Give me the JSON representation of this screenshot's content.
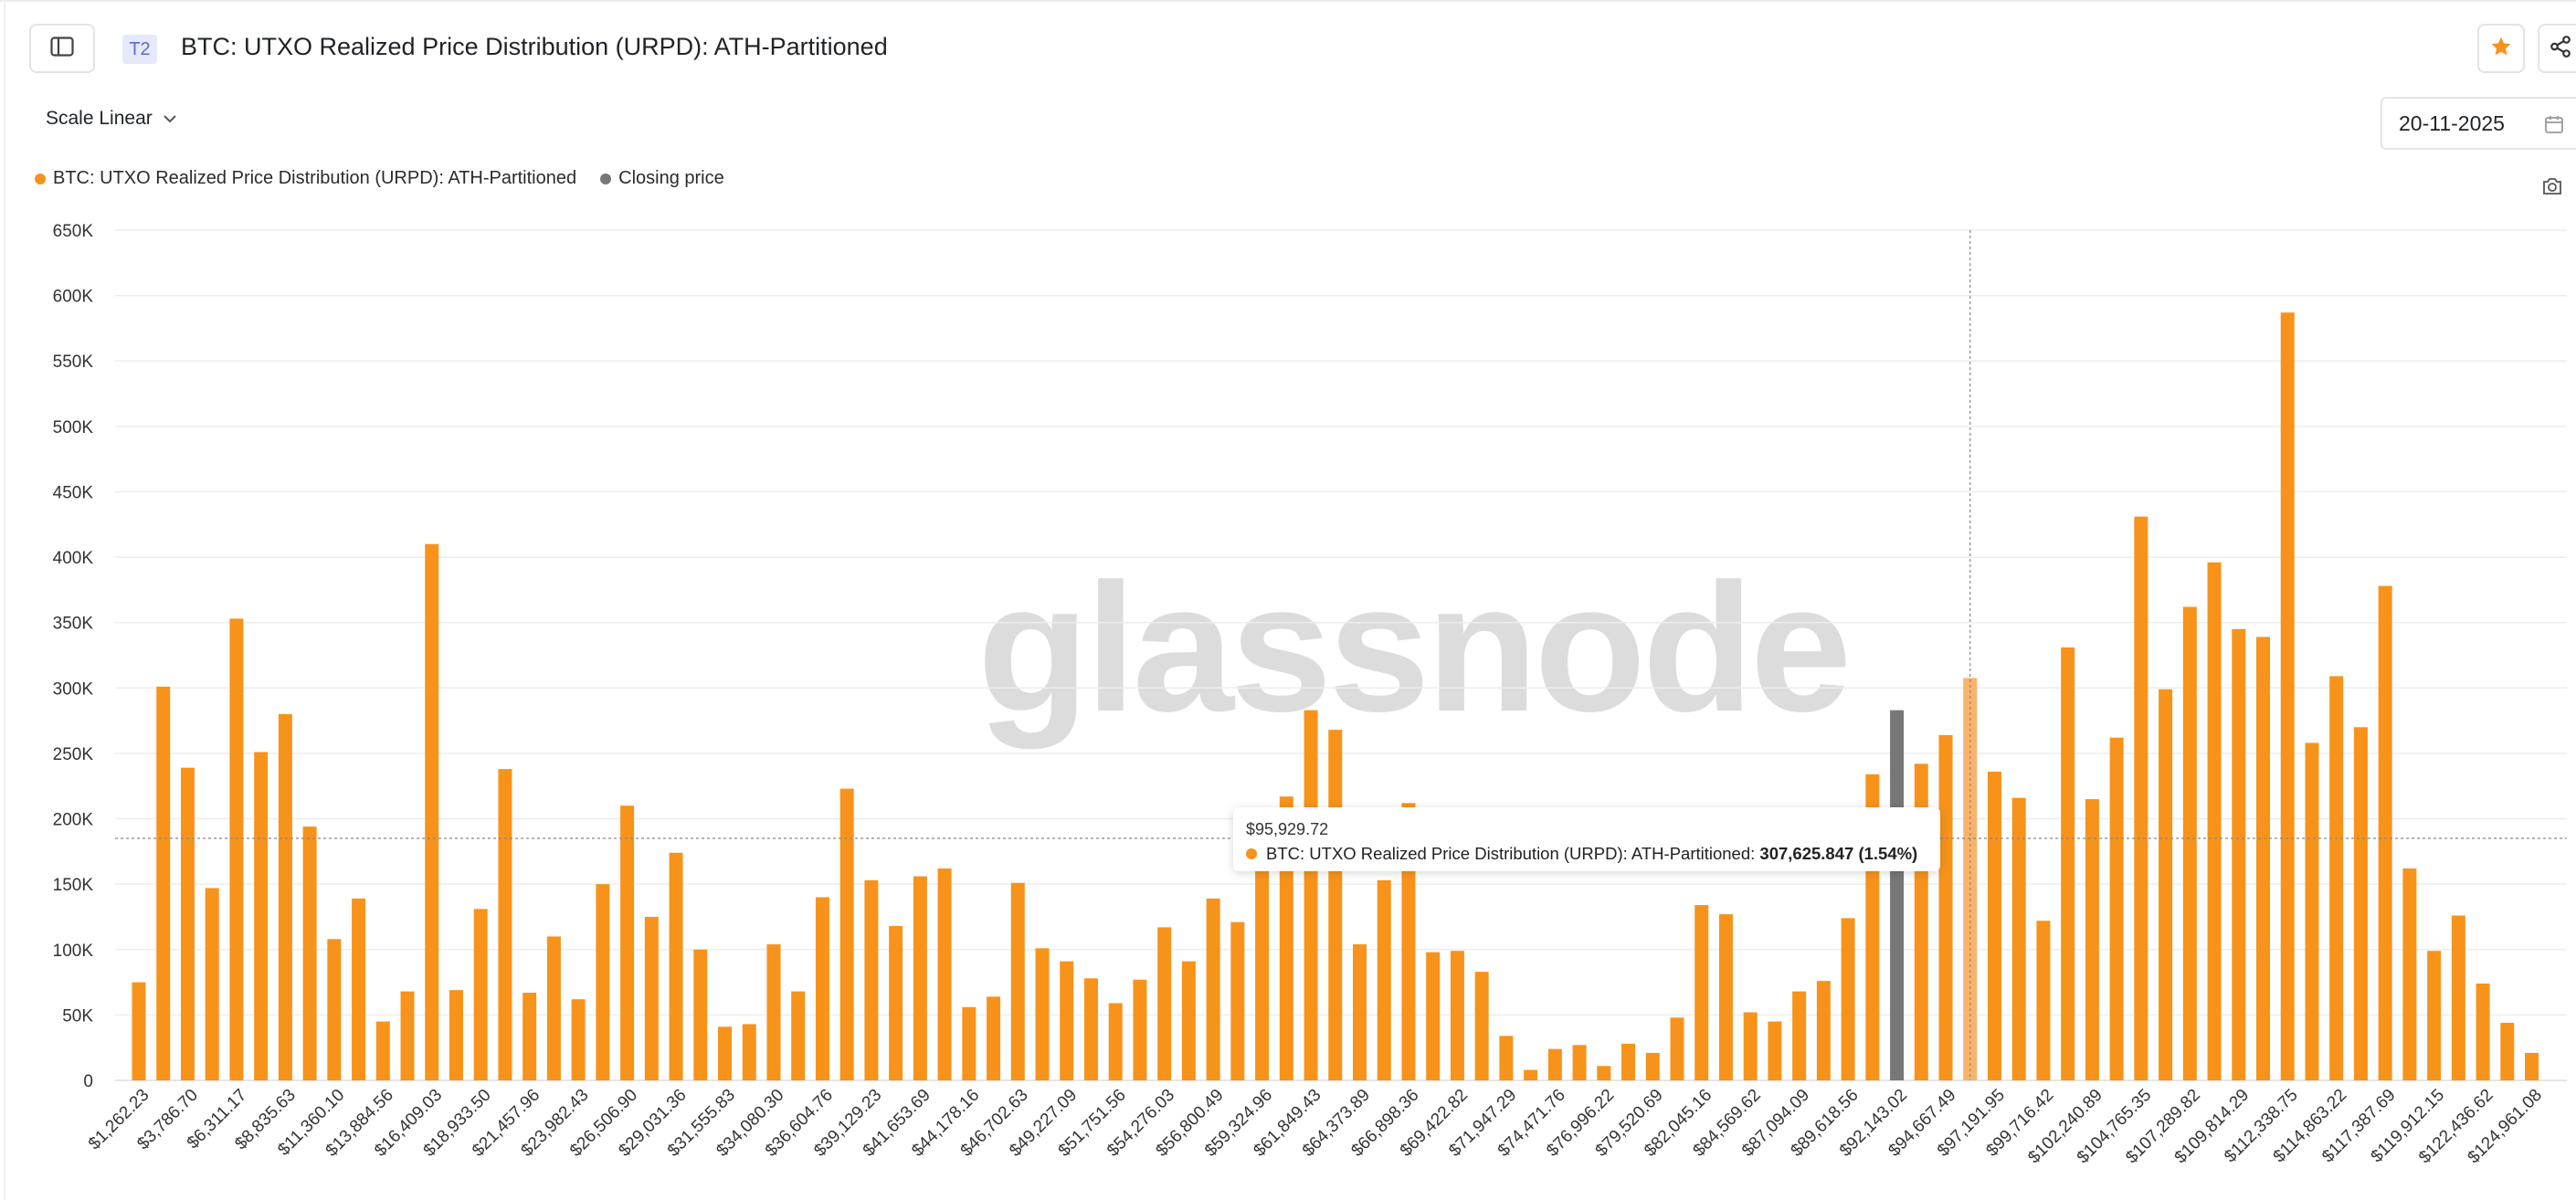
{
  "header": {
    "title": "BTC: UTXO Realized Price Distribution (URPD): ATH-Partitioned",
    "tier_badge": "T2",
    "sidebar_icon": "sidebar-toggle-icon",
    "star_icon": "star-icon",
    "share_icon": "share-icon"
  },
  "controls": {
    "scale_label": "Scale Linear",
    "date_value": "20-11-2025"
  },
  "legend": {
    "items": [
      {
        "label": "BTC: UTXO Realized Price Distribution (URPD): ATH-Partitioned",
        "color": "#f7931a"
      },
      {
        "label": "Closing price",
        "color": "#777777"
      }
    ]
  },
  "watermark": "glassnode",
  "tooltip": {
    "x_label": "$95,929.72",
    "series_label": "BTC: UTXO Realized Price Distribution (URPD): ATH-Partitioned:",
    "value": "307,625.847 (1.54%)"
  },
  "chart_data": {
    "type": "bar",
    "y_ticks": [
      "0",
      "50K",
      "100K",
      "150K",
      "200K",
      "250K",
      "300K",
      "350K",
      "400K",
      "450K",
      "500K",
      "550K",
      "600K",
      "650K"
    ],
    "ylim": [
      0,
      650000
    ],
    "x_tick_labels": [
      "$1,262.23",
      "$3,786.70",
      "$6,311.17",
      "$8,835.63",
      "$11,360.10",
      "$13,884.56",
      "$16,409.03",
      "$18,933.50",
      "$21,457.96",
      "$23,982.43",
      "$26,506.90",
      "$29,031.36",
      "$31,555.83",
      "$34,080.30",
      "$36,604.76",
      "$39,129.23",
      "$41,653.69",
      "$44,178.16",
      "$46,702.63",
      "$49,227.09",
      "$51,751.56",
      "$54,276.03",
      "$56,800.49",
      "$59,324.96",
      "$61,849.43",
      "$64,373.89",
      "$66,898.36",
      "$69,422.82",
      "$71,947.29",
      "$74,471.76",
      "$76,996.22",
      "$79,520.69",
      "$82,045.16",
      "$84,569.62",
      "$87,094.09",
      "$89,618.56",
      "$92,143.02",
      "$94,667.49",
      "$97,191.95",
      "$99,716.42",
      "$102,240.89",
      "$104,765.35",
      "$107,289.82",
      "$109,814.29",
      "$112,338.75",
      "$114,863.22",
      "$117,387.69",
      "$119,912.15",
      "$122,436.62",
      "$124,961.08"
    ],
    "values": [
      75000,
      301000,
      239000,
      147000,
      353000,
      251000,
      280000,
      194000,
      108000,
      139000,
      45000,
      68000,
      410000,
      69000,
      131000,
      238000,
      67000,
      110000,
      62000,
      150000,
      210000,
      125000,
      174000,
      100000,
      41000,
      43000,
      104000,
      68000,
      140000,
      223000,
      153000,
      118000,
      156000,
      162000,
      56000,
      64000,
      151000,
      101000,
      91000,
      78000,
      59000,
      77000,
      117000,
      91000,
      139000,
      121000,
      165000,
      217000,
      283000,
      268000,
      104000,
      153000,
      212000,
      98000,
      99000,
      83000,
      34000,
      8000,
      24000,
      27000,
      11000,
      28000,
      21000,
      48000,
      134000,
      127000,
      52000,
      45000,
      68000,
      76000,
      124000,
      234000,
      283000,
      242000,
      264000,
      307625.847,
      236000,
      216000,
      122000,
      331000,
      215000,
      262000,
      431000,
      299000,
      362000,
      396000,
      345000,
      339000,
      587000,
      258000,
      309000,
      270000,
      378000,
      162000,
      99000,
      126000,
      74000,
      44000,
      21000
    ],
    "closing_price_bar_index": 72,
    "hovered_bar_index": 75,
    "crosshair_y_value": 185000,
    "colors": {
      "bar": "#f7931a",
      "closing_bar": "#777777",
      "hovered_bar": "#f9b36a"
    },
    "grid": true
  }
}
